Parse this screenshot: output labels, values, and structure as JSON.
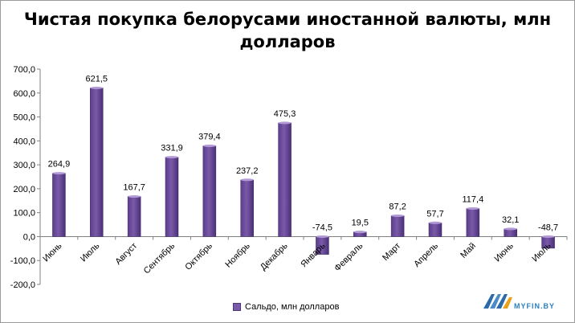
{
  "chart_data": {
    "type": "bar",
    "title": "Чистая покупка белорусами иностанной валюты, млн долларов",
    "categories": [
      "Июнь",
      "Июль",
      "Август",
      "Сентябрь",
      "Октябрь",
      "Ноябрь",
      "Декабрь",
      "Январь",
      "Февраль",
      "Март",
      "Апрель",
      "Май",
      "Июнь",
      "Июль"
    ],
    "series": [
      {
        "name": "Сальдо, млн долларов",
        "values": [
          264.9,
          621.5,
          167.7,
          331.9,
          379.4,
          237.2,
          475.3,
          -74.5,
          19.5,
          87.2,
          57.7,
          117.4,
          32.1,
          -48.7
        ],
        "labels": [
          "264,9",
          "621,5",
          "167,7",
          "331,9",
          "379,4",
          "237,2",
          "475,3",
          "-74,5",
          "19,5",
          "87,2",
          "57,7",
          "117,4",
          "32,1",
          "-48,7"
        ]
      }
    ],
    "ylim": [
      -200,
      700
    ],
    "yticks": [
      -200,
      -100,
      0,
      100,
      200,
      300,
      400,
      500,
      600,
      700
    ],
    "ytick_labels": [
      "-200,0",
      "-100,0",
      "0,0",
      "100,0",
      "200,0",
      "300,0",
      "400,0",
      "500,0",
      "600,0",
      "700,0"
    ],
    "grid": false,
    "legend_position": "bottom",
    "xlabel": "",
    "ylabel": "",
    "bar_color": "#7a5aa8"
  },
  "watermark": {
    "text": "MYFIN.BY"
  }
}
